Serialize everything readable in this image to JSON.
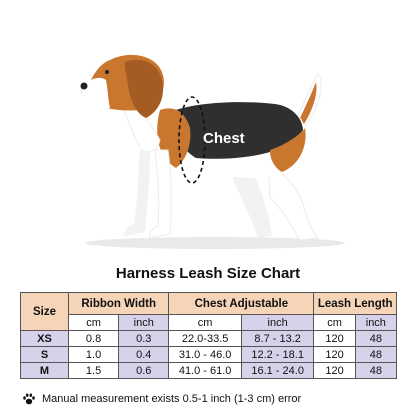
{
  "illustration": {
    "chest_label": "Chest",
    "colors": {
      "tan": "#c9772f",
      "black": "#2f2f2f",
      "white": "#ffffff",
      "shadow": "#e3e3e3"
    }
  },
  "title": "Harness Leash Size Chart",
  "table": {
    "headers": {
      "size": "Size",
      "ribbon": "Ribbon Width",
      "chest": "Chest Adjustable",
      "leash": "Leash Length"
    },
    "units": [
      "cm",
      "inch",
      "cm",
      "inch",
      "cm",
      "inch"
    ],
    "rows": [
      {
        "size": "XS",
        "ribbon_cm": "0.8",
        "ribbon_in": "0.3",
        "chest_cm": "22.0-33.5",
        "chest_in": "8.7 - 13.2",
        "leash_cm": "120",
        "leash_in": "48"
      },
      {
        "size": "S",
        "ribbon_cm": "1.0",
        "ribbon_in": "0.4",
        "chest_cm": "31.0 - 46.0",
        "chest_in": "12.2 - 18.1",
        "leash_cm": "120",
        "leash_in": "48"
      },
      {
        "size": "M",
        "ribbon_cm": "1.5",
        "ribbon_in": "0.6",
        "chest_cm": "41.0 - 61.0",
        "chest_in": "16.1 - 24.0",
        "leash_cm": "120",
        "leash_in": "48"
      }
    ]
  },
  "note": {
    "icon": "paw-icon",
    "text": "Manual measurement exists 0.5-1 inch (1-3 cm) error"
  }
}
